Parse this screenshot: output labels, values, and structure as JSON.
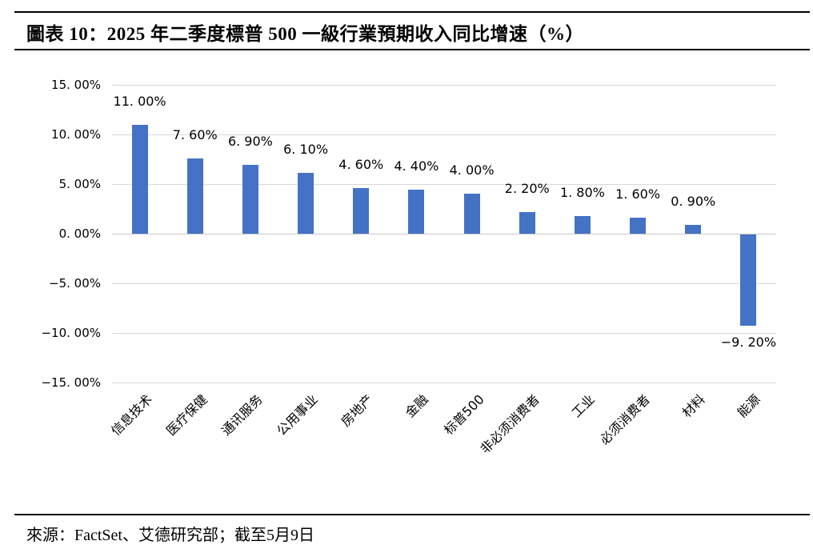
{
  "header": {
    "title": "圖表 10：2025 年二季度標普 500 一級行業預期收入同比增速（%）"
  },
  "footer": {
    "source": "來源：FactSet、艾德研究部；截至5月9日"
  },
  "chart_data": {
    "type": "bar",
    "title": "2025 年二季度標普 500 一級行業預期收入同比增速（%）",
    "xlabel": "",
    "ylabel": "",
    "legend": "none",
    "grid": true,
    "ylim": [
      -15,
      15
    ],
    "categories": [
      "信息技术",
      "医疗保健",
      "通讯服务",
      "公用事业",
      "房地产",
      "金融",
      "标普500",
      "非必须消费者",
      "工业",
      "必须消费者",
      "材料",
      "能源"
    ],
    "values": [
      11.0,
      7.6,
      6.9,
      6.1,
      4.6,
      4.4,
      4.0,
      2.2,
      1.8,
      1.6,
      0.9,
      -9.2
    ],
    "data_labels": [
      "11. 00%",
      "7. 60%",
      "6. 90%",
      "6. 10%",
      "4. 60%",
      "4. 40%",
      "4. 00%",
      "2. 20%",
      "1. 80%",
      "1. 60%",
      "0. 90%",
      "−9. 20%"
    ],
    "y_tick_values": [
      15,
      10,
      5,
      0,
      -5,
      -10,
      -15
    ],
    "y_tick_labels": [
      "15. 00%",
      "10. 00%",
      "5. 00%",
      "0. 00%",
      "−5. 00%",
      "−10. 00%",
      "−15. 00%"
    ],
    "bar_color": "#4472C4",
    "gridline_color": "#D9D9D9",
    "zero_line_color": "#C6C6C6",
    "text_color": "#000000"
  }
}
